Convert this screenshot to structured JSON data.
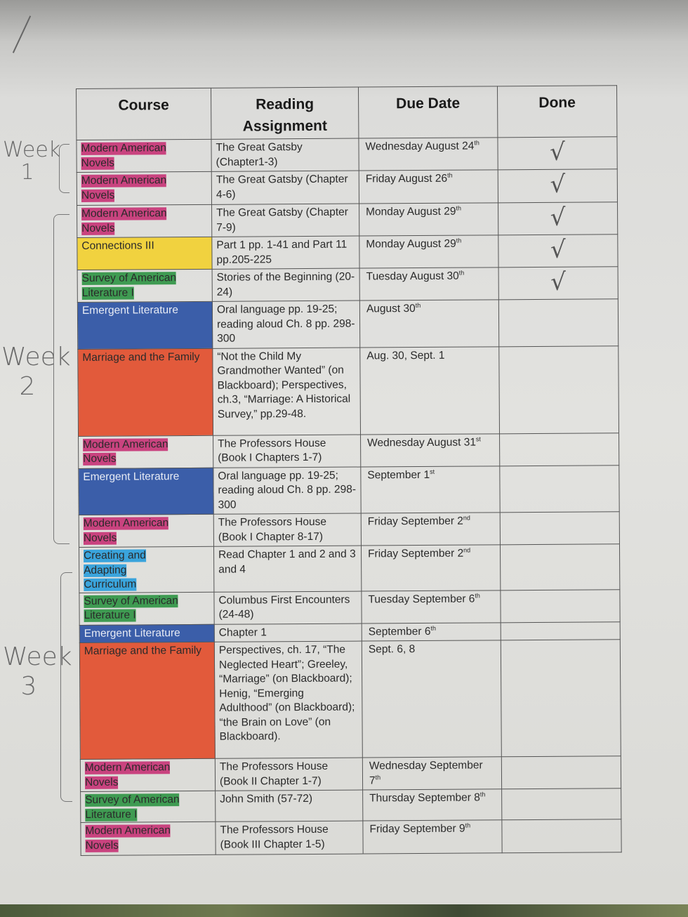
{
  "headers": {
    "course": "Course",
    "reading": "Reading Assignment",
    "due": "Due Date",
    "done": "Done"
  },
  "colors": {
    "pink": "#c9437f",
    "yellow": "#f1d23f",
    "green": "#3f9b52",
    "blue": "#3b5ea9",
    "orange": "#e25a3b",
    "cyan": "#3aa4dc"
  },
  "rows": [
    {
      "course": "Modern American Novels",
      "color": "pink",
      "fill": "inline",
      "reading": "The Great Gatsby (Chapter1-3)",
      "due": "Wednesday August 24",
      "sup": "th",
      "done": "√"
    },
    {
      "course": "Modern American Novels",
      "color": "pink",
      "fill": "inline",
      "reading": "The Great Gatsby (Chapter 4-6)",
      "due": "Friday August 26",
      "sup": "th",
      "done": "√"
    },
    {
      "course": "Modern American Novels",
      "color": "pink",
      "fill": "inline",
      "reading": "The Great Gatsby (Chapter 7-9)",
      "due": "Monday August 29",
      "sup": "th",
      "done": "√"
    },
    {
      "course": "Connections III",
      "color": "yellow",
      "fill": "full",
      "reading": "Part 1 pp. 1-41 and Part 11 pp.205-225",
      "due": "Monday August 29",
      "sup": "th",
      "done": "√"
    },
    {
      "course": "Survey of American Literature I",
      "color": "green",
      "fill": "inline",
      "reading": "Stories of the Beginning (20-24)",
      "due": "Tuesday August 30",
      "sup": "th",
      "done": "√"
    },
    {
      "course": "Emergent Literature",
      "color": "blue",
      "fill": "full",
      "reading": "Oral language pp. 19-25; reading aloud Ch. 8 pp. 298-300",
      "due": "August 30",
      "sup": "th",
      "done": ""
    },
    {
      "course": "Marriage and the Family",
      "color": "orange",
      "fill": "full",
      "reading": "“Not the Child My Grandmother Wanted” (on Blackboard); Perspectives, ch.3, “Marriage: A Historical Survey,” pp.29-48.",
      "due": "Aug. 30, Sept. 1",
      "sup": "",
      "done": ""
    },
    {
      "course": "Modern American Novels",
      "color": "pink",
      "fill": "inline",
      "reading": "The Professors House (Book I Chapters 1-7)",
      "due": "Wednesday August 31",
      "sup": "st",
      "done": ""
    },
    {
      "course": "Emergent Literature",
      "color": "blue",
      "fill": "full",
      "reading": "Oral language pp. 19-25; reading aloud Ch. 8 pp. 298-300",
      "due": "September 1",
      "sup": "st",
      "done": ""
    },
    {
      "course": "Modern American Novels",
      "color": "pink",
      "fill": "inline",
      "reading": "The Professors House (Book I Chapter 8-17)",
      "due": "Friday September 2",
      "sup": "nd",
      "done": ""
    },
    {
      "course": "Creating and Adapting Curriculum",
      "color": "cyan",
      "fill": "inline",
      "reading": "Read Chapter 1 and 2 and 3 and 4",
      "due": "Friday September 2",
      "sup": "nd",
      "done": ""
    },
    {
      "course": "Survey of American Literature I",
      "color": "green",
      "fill": "inline",
      "reading": "Columbus First Encounters (24-48)",
      "due": "Tuesday September 6",
      "sup": "th",
      "done": ""
    },
    {
      "course": "Emergent Literature",
      "color": "blue",
      "fill": "full",
      "reading": "Chapter 1",
      "due": "September 6",
      "sup": "th",
      "done": ""
    },
    {
      "course": "Marriage and the Family",
      "color": "orange",
      "fill": "full",
      "reading": "Perspectives, ch. 17, “The Neglected Heart”; Greeley, “Marriage” (on Blackboard); Henig, “Emerging Adulthood” (on Blackboard); “the Brain on Love” (on Blackboard).",
      "due": "Sept. 6, 8",
      "sup": "",
      "done": ""
    },
    {
      "course": "Modern American Novels",
      "color": "pink",
      "fill": "inline",
      "reading": "The Professors House (Book II Chapter 1-7)",
      "due": "Wednesday September 7",
      "sup": "th",
      "done": ""
    },
    {
      "course": "Survey of American Literature I",
      "color": "green",
      "fill": "inline",
      "reading": "John Smith (57-72)",
      "due": "Thursday September 8",
      "sup": "th",
      "done": ""
    },
    {
      "course": "Modern American Novels",
      "color": "pink",
      "fill": "inline",
      "reading": "The Professors House (Book III Chapter 1-5)",
      "due": "Friday September 9",
      "sup": "th",
      "done": ""
    }
  ],
  "annotations": {
    "week1": "Week 1",
    "week2": "Week 2",
    "week3": "Week 3",
    "slash": "/"
  }
}
